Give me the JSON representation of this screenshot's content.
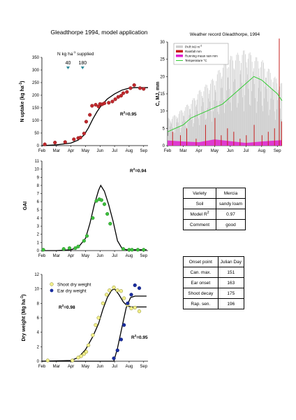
{
  "main_title": "Gleadthorpe 1994, model application",
  "weather_title": "Weather record Gleadthorpe, 1994",
  "months": [
    "Feb",
    "Mar",
    "Apr",
    "May",
    "Jun",
    "Jul",
    "Aug",
    "Sep"
  ],
  "colors": {
    "n_points": "#c0282d",
    "gai_points": "#3cbf3c",
    "shoot_points": "#f2ef8a",
    "ear_points": "#1a2ea0",
    "par": "#cfcfcf",
    "rain": "#c8201f",
    "rain_mean": "#e020d0",
    "temperature": "#33cc33",
    "model_line": "#000000",
    "marker_arrow": "#2a8a9a"
  },
  "n_annotation": {
    "label": "N kg ha",
    "sup": "-1",
    "suffix": " supplied",
    "doses": [
      "40",
      "180"
    ]
  },
  "info_table": [
    {
      "label": "Variety",
      "value": "Mercia"
    },
    {
      "label": "Soil",
      "value": "sandy loam"
    },
    {
      "label": "Model R",
      "sup": "2",
      "value": "0.97"
    },
    {
      "label": "Comment",
      "value": "good"
    }
  ],
  "onset_table": {
    "header": [
      "Onset point",
      "Julian Day"
    ],
    "rows": [
      {
        "label": "Can. max.",
        "value": "151"
      },
      {
        "label": "Ear onset",
        "value": "163"
      },
      {
        "label": "Shoot decay",
        "value": "175"
      },
      {
        "label": "Rap. sen.",
        "value": "196"
      }
    ]
  },
  "chart_data": [
    {
      "id": "n_uptake",
      "type": "scatter",
      "ylabel": "N uptake (kg ha",
      "ylabel_sup": "-1",
      "ylabel_end": ")",
      "ylim": [
        0,
        350
      ],
      "yticks": [
        0,
        50,
        100,
        150,
        200,
        250,
        300,
        350
      ],
      "r2": "0.95",
      "n_doses_month": [
        1.8,
        2.8
      ],
      "points": [
        [
          0.2,
          5
        ],
        [
          0.9,
          12
        ],
        [
          1.6,
          14
        ],
        [
          2.2,
          25
        ],
        [
          2.5,
          30
        ],
        [
          2.65,
          32
        ],
        [
          2.9,
          48
        ],
        [
          3.05,
          95
        ],
        [
          3.3,
          122
        ],
        [
          3.45,
          158
        ],
        [
          3.7,
          162
        ],
        [
          3.9,
          155
        ],
        [
          4.0,
          165
        ],
        [
          4.15,
          164
        ],
        [
          4.3,
          168
        ],
        [
          4.6,
          170
        ],
        [
          4.85,
          175
        ],
        [
          5.05,
          184
        ],
        [
          5.25,
          193
        ],
        [
          5.45,
          198
        ],
        [
          5.6,
          208
        ],
        [
          5.85,
          213
        ],
        [
          6.1,
          228
        ],
        [
          6.35,
          240
        ],
        [
          6.75,
          228
        ],
        [
          7.0,
          225
        ]
      ],
      "model": [
        [
          0,
          0
        ],
        [
          1,
          3
        ],
        [
          2,
          10
        ],
        [
          2.5,
          22
        ],
        [
          2.9,
          42
        ],
        [
          3.2,
          70
        ],
        [
          3.5,
          105
        ],
        [
          3.8,
          135
        ],
        [
          4.1,
          160
        ],
        [
          4.5,
          185
        ],
        [
          5.0,
          205
        ],
        [
          5.5,
          220
        ],
        [
          6.0,
          228
        ],
        [
          6.4,
          230
        ],
        [
          7.3,
          230
        ]
      ]
    },
    {
      "id": "weather",
      "type": "line",
      "ylim": [
        0,
        30
      ],
      "yticks": [
        0,
        5,
        10,
        15,
        20,
        25,
        30
      ],
      "ylabel": "C, MJ, mm",
      "legend": [
        "PAR MJ m",
        "Rainfall mm",
        "Running mean rain mm",
        "Temperature °C"
      ],
      "legend_sup": "-2",
      "par_envelope": [
        [
          0,
          8
        ],
        [
          0.5,
          9
        ],
        [
          1,
          11
        ],
        [
          1.5,
          13
        ],
        [
          2,
          16
        ],
        [
          2.5,
          18
        ],
        [
          3,
          20
        ],
        [
          3.5,
          24
        ],
        [
          4,
          26
        ],
        [
          4.5,
          27
        ],
        [
          5,
          28
        ],
        [
          5.5,
          26
        ],
        [
          6,
          25
        ],
        [
          6.5,
          22
        ],
        [
          7,
          19
        ],
        [
          7.3,
          18
        ]
      ],
      "temperature": [
        [
          0,
          4
        ],
        [
          0.5,
          5
        ],
        [
          1,
          6
        ],
        [
          1.5,
          8
        ],
        [
          2,
          9
        ],
        [
          2.5,
          10
        ],
        [
          3,
          11
        ],
        [
          3.5,
          12
        ],
        [
          4,
          14
        ],
        [
          4.5,
          16
        ],
        [
          5,
          18
        ],
        [
          5.5,
          20
        ],
        [
          6,
          19
        ],
        [
          6.5,
          17
        ],
        [
          7,
          15
        ],
        [
          7.3,
          13
        ]
      ],
      "rainfall": [
        [
          0.3,
          4
        ],
        [
          0.8,
          3
        ],
        [
          1.2,
          5
        ],
        [
          1.8,
          2
        ],
        [
          2.4,
          6
        ],
        [
          3.0,
          8
        ],
        [
          3.4,
          3
        ],
        [
          3.8,
          5
        ],
        [
          4.2,
          4
        ],
        [
          4.6,
          2
        ],
        [
          5.0,
          3
        ],
        [
          5.5,
          6
        ],
        [
          6.0,
          3
        ],
        [
          6.4,
          4
        ],
        [
          6.8,
          5
        ],
        [
          7.1,
          31
        ],
        [
          7.25,
          7
        ]
      ],
      "running_mean_rain": [
        [
          0,
          1.5
        ],
        [
          1,
          1.2
        ],
        [
          2,
          1.0
        ],
        [
          3,
          1.8
        ],
        [
          4,
          1.3
        ],
        [
          5,
          0.8
        ],
        [
          6,
          1.2
        ],
        [
          7,
          1.5
        ],
        [
          7.3,
          1.6
        ]
      ]
    },
    {
      "id": "gai",
      "type": "scatter",
      "ylabel": "GAI",
      "ylim": [
        0,
        11
      ],
      "yticks": [
        0,
        1,
        2,
        3,
        4,
        5,
        6,
        7,
        8,
        9,
        10,
        11
      ],
      "r2": "0.94",
      "points": [
        [
          0.1,
          0.1
        ],
        [
          1.5,
          0.2
        ],
        [
          1.9,
          0.3
        ],
        [
          2.3,
          0.3
        ],
        [
          2.5,
          0.5
        ],
        [
          2.9,
          1.2
        ],
        [
          3.1,
          1.8
        ],
        [
          3.5,
          4.0
        ],
        [
          3.75,
          6.1
        ],
        [
          3.95,
          6.3
        ],
        [
          4.1,
          6.2
        ],
        [
          4.3,
          5.7
        ],
        [
          4.5,
          4.5
        ],
        [
          4.7,
          3.3
        ],
        [
          5.6,
          0.2
        ],
        [
          6.0,
          0.1
        ],
        [
          6.2,
          0.1
        ],
        [
          6.6,
          0.1
        ],
        [
          7.0,
          0.1
        ]
      ],
      "model": [
        [
          0,
          0
        ],
        [
          1,
          0
        ],
        [
          2,
          0.1
        ],
        [
          2.5,
          0.4
        ],
        [
          3,
          1.5
        ],
        [
          3.3,
          3.3
        ],
        [
          3.6,
          5.6
        ],
        [
          3.9,
          7.4
        ],
        [
          4.05,
          8.0
        ],
        [
          4.3,
          7.3
        ],
        [
          4.6,
          5.6
        ],
        [
          4.9,
          3.6
        ],
        [
          5.2,
          1.2
        ],
        [
          5.5,
          0.3
        ],
        [
          5.8,
          0.1
        ],
        [
          7.2,
          0.1
        ]
      ]
    },
    {
      "id": "dry_weight",
      "type": "scatter",
      "ylabel": "Dry weight (Mg ha",
      "ylabel_sup": "-1",
      "ylabel_end": ")",
      "ylim": [
        0,
        12
      ],
      "yticks": [
        0,
        2,
        4,
        6,
        8,
        10,
        12
      ],
      "legend": [
        "Shoot dry weight",
        "Ear dry weight"
      ],
      "r2_shoot": "0.98",
      "r2_ear": "0.95",
      "shoot_points": [
        [
          0.4,
          0.1
        ],
        [
          2.1,
          0.1
        ],
        [
          2.5,
          0.5
        ],
        [
          2.7,
          0.7
        ],
        [
          2.9,
          1.0
        ],
        [
          3.05,
          1.3
        ],
        [
          3.2,
          2.2
        ],
        [
          3.5,
          3.6
        ],
        [
          3.7,
          5.0
        ],
        [
          3.9,
          6.0
        ],
        [
          4.2,
          8.0
        ],
        [
          4.45,
          9.2
        ],
        [
          4.65,
          9.8
        ],
        [
          4.95,
          10.2
        ],
        [
          5.2,
          9.8
        ],
        [
          5.45,
          9.7
        ],
        [
          5.65,
          8.7
        ],
        [
          5.9,
          7.8
        ],
        [
          6.15,
          7.3
        ],
        [
          6.4,
          7.4
        ],
        [
          6.7,
          6.9
        ]
      ],
      "ear_points": [
        [
          4.95,
          0.4
        ],
        [
          5.2,
          1.5
        ],
        [
          5.45,
          3.0
        ],
        [
          5.65,
          5.0
        ],
        [
          5.9,
          8.0
        ],
        [
          6.15,
          9.2
        ],
        [
          6.4,
          10.5
        ],
        [
          6.7,
          10.1
        ]
      ],
      "shoot_model": [
        [
          0,
          0
        ],
        [
          2,
          0.1
        ],
        [
          2.5,
          0.5
        ],
        [
          3,
          1.6
        ],
        [
          3.5,
          3.4
        ],
        [
          3.9,
          5.2
        ],
        [
          4.2,
          7.2
        ],
        [
          4.5,
          8.8
        ],
        [
          4.8,
          9.8
        ],
        [
          5.0,
          10.0
        ],
        [
          5.3,
          9.2
        ],
        [
          5.6,
          8.2
        ],
        [
          5.9,
          7.6
        ],
        [
          6.2,
          7.5
        ],
        [
          7.2,
          7.5
        ]
      ],
      "ear_model": [
        [
          0,
          0
        ],
        [
          4.95,
          0
        ],
        [
          5.2,
          1.8
        ],
        [
          5.5,
          4.6
        ],
        [
          5.8,
          7.4
        ],
        [
          6.1,
          8.8
        ],
        [
          6.4,
          9.0
        ],
        [
          7.2,
          9.0
        ]
      ]
    }
  ]
}
